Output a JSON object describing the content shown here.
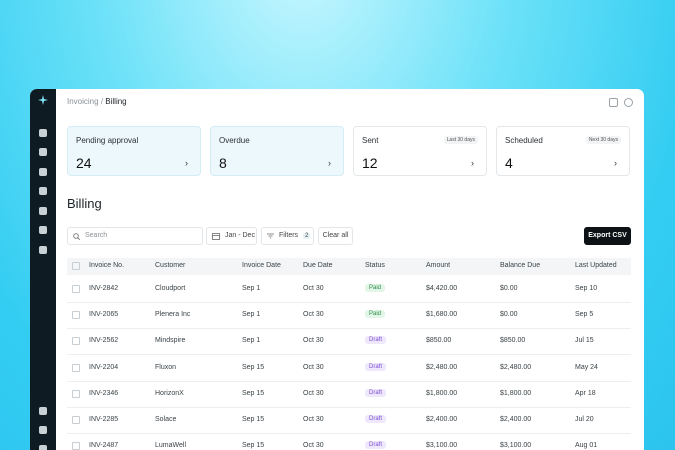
{
  "breadcrumb": {
    "parent": "Invoicing",
    "separator": "/",
    "current": "Billing"
  },
  "cards": [
    {
      "title": "Pending approval",
      "value": 24,
      "highlight": true
    },
    {
      "title": "Overdue",
      "value": 8,
      "highlight": true
    },
    {
      "title": "Sent",
      "value": 12,
      "badge": "Last 30 days",
      "highlight": false
    },
    {
      "title": "Scheduled",
      "value": 4,
      "badge": "Next 30 days",
      "highlight": false
    }
  ],
  "page_title": "Billing",
  "toolbar": {
    "search_placeholder": "Search",
    "date_range": "Jan - Dec",
    "filters": "Filters",
    "filter_count": 2,
    "clear": "Clear all",
    "export": "Export CSV"
  },
  "table": {
    "columns": [
      "Invoice No.",
      "Customer",
      "Invoice Date",
      "Due Date",
      "Status",
      "Amount",
      "Balance Due",
      "Last Updated"
    ],
    "rows": [
      [
        "INV-2842",
        "Cloudport",
        "Sep 1",
        "Oct 30",
        "Paid",
        "$4,420.00",
        "$0.00",
        "Sep 10"
      ],
      [
        "INV-2065",
        "Plenera Inc",
        "Sep 1",
        "Oct 30",
        "Paid",
        "$1,680.00",
        "$0.00",
        "Sep 5"
      ],
      [
        "INV-2562",
        "Mindspire",
        "Sep 1",
        "Oct 30",
        "Draft",
        "$850.00",
        "$850.00",
        "Jul 15"
      ],
      [
        "INV-2204",
        "Fluxon",
        "Sep 15",
        "Oct 30",
        "Draft",
        "$2,480.00",
        "$2,480.00",
        "May 24"
      ],
      [
        "INV-2346",
        "HorizonX",
        "Sep 15",
        "Oct 30",
        "Draft",
        "$1,800.00",
        "$1,800.00",
        "Apr 18"
      ],
      [
        "INV-2285",
        "Solace",
        "Sep 15",
        "Oct 30",
        "Draft",
        "$2,400.00",
        "$2,400.00",
        "Jul 20"
      ],
      [
        "INV-2487",
        "LumaWell",
        "Sep 15",
        "Oct 30",
        "Draft",
        "$3,100.00",
        "$3,100.00",
        "Aug 01"
      ]
    ],
    "status_styles": {
      "Paid": {
        "bg": "#e2f6e7",
        "color": "#2e8a4a"
      },
      "Draft": {
        "bg": "#efe8fc",
        "color": "#7a4fd0"
      }
    }
  }
}
